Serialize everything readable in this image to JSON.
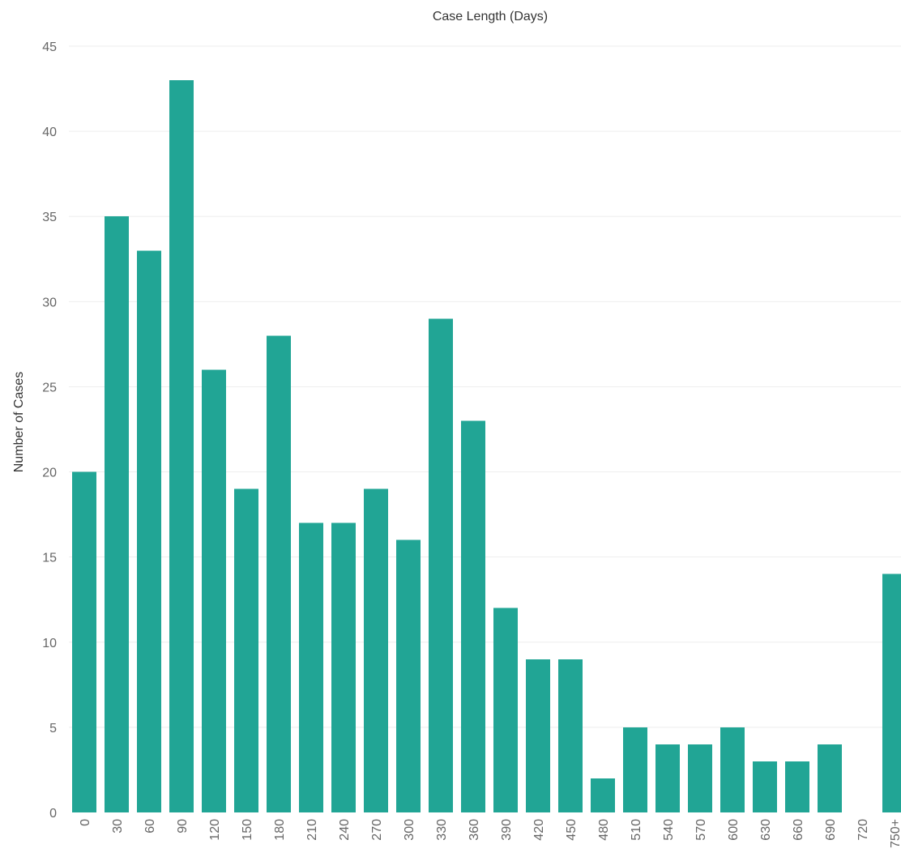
{
  "colors": {
    "bar": "#21a595"
  },
  "chart_data": {
    "type": "bar",
    "title": "Case Length (Days)",
    "xlabel": "",
    "ylabel": "Number of Cases",
    "ylim": [
      0,
      45
    ],
    "yticks": [
      0,
      5,
      10,
      15,
      20,
      25,
      30,
      35,
      40,
      45
    ],
    "grid": true,
    "categories": [
      "0",
      "30",
      "60",
      "90",
      "120",
      "150",
      "180",
      "210",
      "240",
      "270",
      "300",
      "330",
      "360",
      "390",
      "420",
      "450",
      "480",
      "510",
      "540",
      "570",
      "600",
      "630",
      "660",
      "690",
      "720",
      "750+"
    ],
    "values": [
      20,
      35,
      33,
      43,
      26,
      19,
      28,
      17,
      17,
      19,
      16,
      29,
      23,
      12,
      9,
      9,
      2,
      5,
      4,
      4,
      5,
      3,
      3,
      4,
      0,
      14
    ]
  }
}
